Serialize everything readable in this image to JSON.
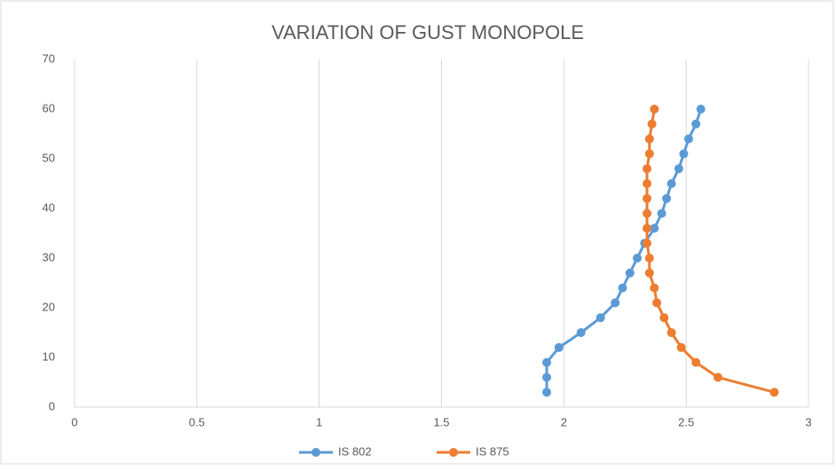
{
  "chart_data": {
    "type": "line",
    "title": "VARIATION OF GUST  MONOPOLE",
    "series": [
      {
        "name": "IS 802",
        "color": "#5b9bd5",
        "x": [
          1.93,
          1.93,
          1.93,
          1.98,
          2.07,
          2.15,
          2.21,
          2.24,
          2.27,
          2.3,
          2.33,
          2.37,
          2.4,
          2.42,
          2.44,
          2.47,
          2.49,
          2.51,
          2.54,
          2.56
        ],
        "values": [
          3,
          6,
          9,
          12,
          15,
          18,
          21,
          24,
          27,
          30,
          33,
          36,
          39,
          42,
          45,
          48,
          51,
          54,
          57,
          60
        ]
      },
      {
        "name": "IS 875",
        "color": "#ed7d31",
        "x": [
          2.86,
          2.63,
          2.54,
          2.48,
          2.44,
          2.41,
          2.38,
          2.37,
          2.35,
          2.35,
          2.34,
          2.34,
          2.34,
          2.34,
          2.34,
          2.34,
          2.35,
          2.35,
          2.36,
          2.37
        ],
        "values": [
          3,
          6,
          9,
          12,
          15,
          18,
          21,
          24,
          27,
          30,
          33,
          36,
          39,
          42,
          45,
          48,
          51,
          54,
          57,
          60
        ]
      }
    ],
    "xlim": [
      0,
      3
    ],
    "xticks": [
      0,
      0.5,
      1,
      1.5,
      2,
      2.5,
      3
    ],
    "ylim": [
      0,
      70
    ],
    "yticks": [
      0,
      10,
      20,
      30,
      40,
      50,
      60,
      70
    ],
    "grid": "x",
    "legend": "bottom"
  }
}
